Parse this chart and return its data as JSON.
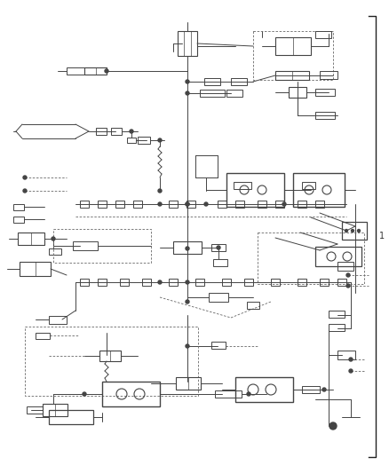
{
  "bg_color": "#ffffff",
  "line_color": "#444444",
  "dashed_color": "#666666",
  "border_color": "#222222",
  "label_color": "#333333",
  "fig_width": 4.38,
  "fig_height": 5.33,
  "dpi": 100,
  "page_label": "1"
}
